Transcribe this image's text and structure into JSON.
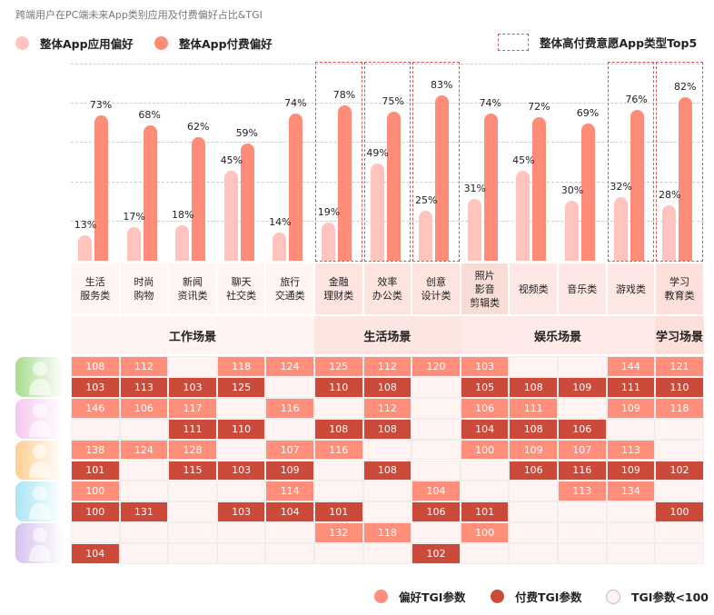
{
  "title": "跨端用户在PC端未来App类别应用及付费偏好占比&TGI",
  "legend_top": {
    "use_label": "整体App应用偏好",
    "pay_label": "整体App付费偏好",
    "top5_label": "整体高付费意愿App类型Top5"
  },
  "legend_bottom": {
    "pref_label": "偏好TGI参数",
    "pay_label": "付费TGI参数",
    "low_label": "TGI参数<100"
  },
  "colors": {
    "use_bar": "#ffc4bd",
    "pay_bar": "#ff8c78",
    "pref_cell": "#ff8f7a",
    "pay_cell": "#cc4a3a",
    "low_cell": "#fff4f2",
    "top5_border": "#d9534f"
  },
  "avatars": [
    {
      "icon": "person-glasses-laptop-icon",
      "color": "#a8dc8e"
    },
    {
      "icon": "person-pink-icon",
      "color": "#f5c8ee"
    },
    {
      "icon": "person-orange-icon",
      "color": "#ffcf92"
    },
    {
      "icon": "person-headphones-icon",
      "color": "#a8e6f5"
    },
    {
      "icon": "person-tablet-icon",
      "color": "#d7c1ee"
    }
  ],
  "chart_data": {
    "type": "bar",
    "categories": [
      "生活\n服务类",
      "时尚\n购物",
      "新闻\n资讯类",
      "聊天\n社交类",
      "旅行\n交通类",
      "金融\n理财类",
      "效率\n办公类",
      "创意\n设计类",
      "照片\n影音\n剪辑类",
      "视频类",
      "音乐类",
      "游戏类",
      "学习\n教育类"
    ],
    "series": [
      {
        "name": "整体App应用偏好",
        "values": [
          13,
          17,
          18,
          45,
          14,
          19,
          49,
          25,
          31,
          45,
          30,
          32,
          28
        ]
      },
      {
        "name": "整体App付费偏好",
        "values": [
          73,
          68,
          62,
          59,
          74,
          78,
          75,
          83,
          74,
          72,
          69,
          76,
          82
        ]
      }
    ],
    "value_labels": {
      "use": [
        "13%",
        "17%",
        "18%",
        "45%",
        "14%",
        "19%",
        "49%",
        "25%",
        "31%",
        "45%",
        "30%",
        "32%",
        "28%"
      ],
      "pay": [
        "73%",
        "68%",
        "62%",
        "59%",
        "74%",
        "78%",
        "75%",
        "83%",
        "74%",
        "72%",
        "69%",
        "76%",
        "82%"
      ]
    },
    "top5": [
      5,
      6,
      7,
      11,
      12
    ],
    "ylim": [
      0,
      100
    ],
    "grid": true,
    "scenes": [
      {
        "label": "工作场景",
        "span": 5,
        "bg": "#fff4f2"
      },
      {
        "label": "生活场景",
        "span": 3,
        "bg": "#fde6e2"
      },
      {
        "label": "娱乐场景",
        "span": 4,
        "bg": "#fde9e6"
      },
      {
        "label": "学习场景",
        "span": 1,
        "bg": "#fde0da"
      }
    ],
    "column_bg": [
      "#fff4f2",
      "#fff4f2",
      "#fff4f2",
      "#fff4f2",
      "#fff4f2",
      "#fde4df",
      "#fde4df",
      "#fde4df",
      "#fadcd6",
      "#fde8e4",
      "#fde8e4",
      "#fde8e4",
      "#fde0da"
    ],
    "tgi_rows": [
      {
        "type": "pref",
        "values": [
          108,
          112,
          null,
          118,
          124,
          125,
          112,
          120,
          103,
          null,
          null,
          144,
          121
        ]
      },
      {
        "type": "pay",
        "values": [
          103,
          113,
          103,
          125,
          null,
          110,
          108,
          null,
          105,
          108,
          109,
          111,
          110
        ]
      },
      {
        "type": "pref",
        "values": [
          146,
          106,
          117,
          null,
          116,
          null,
          112,
          null,
          106,
          111,
          null,
          109,
          118
        ]
      },
      {
        "type": "pay",
        "values": [
          null,
          null,
          111,
          110,
          null,
          108,
          108,
          null,
          104,
          108,
          106,
          null,
          null
        ]
      },
      {
        "type": "pref",
        "values": [
          138,
          124,
          128,
          null,
          107,
          116,
          null,
          null,
          100,
          109,
          107,
          113,
          null
        ]
      },
      {
        "type": "pay",
        "values": [
          101,
          null,
          115,
          103,
          109,
          null,
          108,
          null,
          null,
          106,
          116,
          109,
          102
        ]
      },
      {
        "type": "pref",
        "values": [
          100,
          null,
          null,
          null,
          114,
          null,
          null,
          104,
          null,
          null,
          113,
          134,
          null
        ]
      },
      {
        "type": "pay",
        "values": [
          100,
          131,
          null,
          103,
          104,
          101,
          null,
          106,
          101,
          null,
          null,
          null,
          100
        ]
      },
      {
        "type": "pref",
        "values": [
          null,
          null,
          null,
          null,
          null,
          132,
          118,
          null,
          100,
          null,
          null,
          null,
          null
        ]
      },
      {
        "type": "pay",
        "values": [
          104,
          null,
          null,
          null,
          null,
          null,
          null,
          102,
          null,
          null,
          null,
          null,
          null
        ]
      }
    ]
  }
}
